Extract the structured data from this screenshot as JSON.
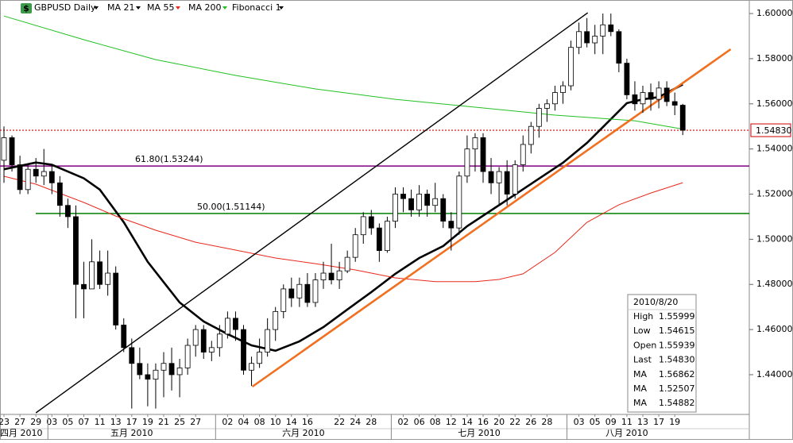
{
  "chart_data": {
    "type": "candlestick",
    "title": "GBPUSD Daily",
    "candle_color": "#000000",
    "categories": [
      "23",
      null,
      "27",
      null,
      "29",
      null,
      "03",
      null,
      "05",
      null,
      "07",
      null,
      "11",
      null,
      "13",
      null,
      "17",
      null,
      "19",
      null,
      "21",
      null,
      "25",
      null,
      "27",
      null,
      null,
      null,
      "02",
      null,
      "04",
      null,
      "08",
      null,
      "10",
      null,
      "14",
      null,
      "16",
      null,
      null,
      null,
      "22",
      null,
      "24",
      null,
      "28",
      null,
      null,
      null,
      "02",
      null,
      "06",
      null,
      "08",
      null,
      "12",
      null,
      "14",
      null,
      "16",
      null,
      "20",
      null,
      "22",
      null,
      "26",
      null,
      "28",
      null,
      null,
      null,
      "03",
      null,
      "05",
      null,
      "09",
      null,
      "11",
      null,
      "13",
      null,
      "17",
      null,
      "19",
      null
    ],
    "months": [
      {
        "label": "四月 2010",
        "start": 0
      },
      {
        "label": "五月 2010",
        "start": 6
      },
      {
        "label": "六月 2010",
        "start": 27
      },
      {
        "label": "七月 2010",
        "start": 49
      },
      {
        "label": "八月 2010",
        "start": 71
      }
    ],
    "ohlc": [
      [
        1.535,
        1.55,
        1.525,
        1.545
      ],
      [
        1.545,
        1.546,
        1.53,
        1.533
      ],
      [
        1.533,
        1.537,
        1.52,
        1.522
      ],
      [
        1.522,
        1.533,
        1.52,
        1.531
      ],
      [
        1.531,
        1.536,
        1.525,
        1.528
      ],
      [
        1.528,
        1.54,
        1.524,
        1.53
      ],
      [
        1.53,
        1.533,
        1.52,
        1.525
      ],
      [
        1.525,
        1.528,
        1.51,
        1.515
      ],
      [
        1.515,
        1.518,
        1.505,
        1.51
      ],
      [
        1.51,
        1.515,
        1.465,
        1.48
      ],
      [
        1.48,
        1.49,
        1.465,
        1.478
      ],
      [
        1.478,
        1.5,
        1.478,
        1.49
      ],
      [
        1.49,
        1.495,
        1.478,
        1.48
      ],
      [
        1.48,
        1.495,
        1.475,
        1.485
      ],
      [
        1.485,
        1.488,
        1.46,
        1.462
      ],
      [
        1.462,
        1.465,
        1.45,
        1.452
      ],
      [
        1.452,
        1.456,
        1.425,
        1.445
      ],
      [
        1.445,
        1.452,
        1.438,
        1.44
      ],
      [
        1.44,
        1.445,
        1.426,
        1.438
      ],
      [
        1.438,
        1.445,
        1.425,
        1.442
      ],
      [
        1.442,
        1.45,
        1.43,
        1.445
      ],
      [
        1.445,
        1.452,
        1.433,
        1.44
      ],
      [
        1.44,
        1.447,
        1.43,
        1.443
      ],
      [
        1.443,
        1.456,
        1.44,
        1.453
      ],
      [
        1.453,
        1.462,
        1.448,
        1.46
      ],
      [
        1.46,
        1.462,
        1.447,
        1.45
      ],
      [
        1.45,
        1.455,
        1.446,
        1.452
      ],
      [
        1.452,
        1.462,
        1.448,
        1.458
      ],
      [
        1.458,
        1.468,
        1.456,
        1.465
      ],
      [
        1.465,
        1.468,
        1.455,
        1.46
      ],
      [
        1.46,
        1.462,
        1.44,
        1.442
      ],
      [
        1.442,
        1.448,
        1.435,
        1.445
      ],
      [
        1.445,
        1.456,
        1.443,
        1.45
      ],
      [
        1.45,
        1.465,
        1.448,
        1.46
      ],
      [
        1.46,
        1.47,
        1.455,
        1.468
      ],
      [
        1.468,
        1.48,
        1.465,
        1.478
      ],
      [
        1.478,
        1.483,
        1.47,
        1.474
      ],
      [
        1.474,
        1.483,
        1.47,
        1.48
      ],
      [
        1.48,
        1.485,
        1.47,
        1.472
      ],
      [
        1.472,
        1.485,
        1.47,
        1.482
      ],
      [
        1.482,
        1.49,
        1.478,
        1.485
      ],
      [
        1.485,
        1.498,
        1.48,
        1.482
      ],
      [
        1.482,
        1.49,
        1.478,
        1.486
      ],
      [
        1.486,
        1.495,
        1.485,
        1.492
      ],
      [
        1.492,
        1.505,
        1.49,
        1.502
      ],
      [
        1.502,
        1.512,
        1.498,
        1.51
      ],
      [
        1.51,
        1.513,
        1.502,
        1.505
      ],
      [
        1.505,
        1.507,
        1.49,
        1.495
      ],
      [
        1.495,
        1.51,
        1.494,
        1.508
      ],
      [
        1.508,
        1.523,
        1.505,
        1.52
      ],
      [
        1.52,
        1.523,
        1.512,
        1.518
      ],
      [
        1.518,
        1.522,
        1.51,
        1.513
      ],
      [
        1.513,
        1.524,
        1.51,
        1.52
      ],
      [
        1.52,
        1.522,
        1.51,
        1.515
      ],
      [
        1.515,
        1.525,
        1.512,
        1.518
      ],
      [
        1.518,
        1.52,
        1.505,
        1.508
      ],
      [
        1.508,
        1.512,
        1.495,
        1.505
      ],
      [
        1.505,
        1.53,
        1.502,
        1.528
      ],
      [
        1.528,
        1.546,
        1.525,
        1.54
      ],
      [
        1.54,
        1.547,
        1.53,
        1.545
      ],
      [
        1.545,
        1.547,
        1.525,
        1.53
      ],
      [
        1.53,
        1.536,
        1.52,
        1.525
      ],
      [
        1.525,
        1.532,
        1.515,
        1.53
      ],
      [
        1.53,
        1.535,
        1.515,
        1.52
      ],
      [
        1.52,
        1.535,
        1.518,
        1.533
      ],
      [
        1.533,
        1.546,
        1.53,
        1.542
      ],
      [
        1.542,
        1.552,
        1.538,
        1.55
      ],
      [
        1.55,
        1.56,
        1.545,
        1.558
      ],
      [
        1.558,
        1.562,
        1.552,
        1.56
      ],
      [
        1.56,
        1.568,
        1.557,
        1.565
      ],
      [
        1.565,
        1.57,
        1.56,
        1.568
      ],
      [
        1.568,
        1.588,
        1.566,
        1.585
      ],
      [
        1.585,
        1.596,
        1.582,
        1.592
      ],
      [
        1.592,
        1.598,
        1.585,
        1.587
      ],
      [
        1.587,
        1.595,
        1.582,
        1.59
      ],
      [
        1.59,
        1.6,
        1.582,
        1.595
      ],
      [
        1.595,
        1.6,
        1.59,
        1.592
      ],
      [
        1.592,
        1.593,
        1.574,
        1.578
      ],
      [
        1.578,
        1.58,
        1.562,
        1.564
      ],
      [
        1.564,
        1.57,
        1.557,
        1.56
      ],
      [
        1.56,
        1.568,
        1.556,
        1.565
      ],
      [
        1.565,
        1.569,
        1.557,
        1.562
      ],
      [
        1.562,
        1.57,
        1.558,
        1.567
      ],
      [
        1.567,
        1.57,
        1.559,
        1.561
      ],
      [
        1.561,
        1.565,
        1.555,
        1.5594
      ],
      [
        1.55939,
        1.55999,
        1.54615,
        1.5483
      ]
    ],
    "series": [
      {
        "name": "MA 21",
        "color": "#000000",
        "x": [
          0,
          4,
          6,
          10,
          12,
          15,
          18,
          20,
          22,
          25,
          28,
          31,
          34,
          37,
          40,
          43,
          46,
          49,
          52,
          55,
          58,
          61,
          64,
          67,
          70,
          73,
          76,
          78,
          80,
          82,
          85
        ],
        "values": [
          1.531,
          1.534,
          1.533,
          1.527,
          1.522,
          1.5075,
          1.49,
          1.481,
          1.472,
          1.4636,
          1.458,
          1.453,
          1.4506,
          1.4548,
          1.4611,
          1.4689,
          1.4766,
          1.4847,
          1.4917,
          1.497,
          1.5058,
          1.5128,
          1.5198,
          1.5269,
          1.5339,
          1.5427,
          1.5532,
          1.5603,
          1.562,
          1.563,
          1.56862
        ]
      },
      {
        "name": "MA 55",
        "color": "#e8281c",
        "x": [
          0,
          4,
          10,
          14,
          19,
          24,
          29,
          34,
          39,
          44,
          49,
          54,
          59,
          62,
          65,
          69,
          73,
          77,
          81,
          85
        ],
        "values": [
          1.5279,
          1.5244,
          1.5163,
          1.5103,
          1.504,
          1.4987,
          1.4952,
          1.4917,
          1.4892,
          1.4864,
          1.4829,
          1.4812,
          1.4812,
          1.4822,
          1.4847,
          1.4942,
          1.5075,
          1.5153,
          1.5205,
          1.52507
        ]
      },
      {
        "name": "MA 200",
        "color": "#22c022",
        "x": [
          0,
          10,
          19,
          29,
          39,
          49,
          59,
          69,
          79,
          85
        ],
        "values": [
          1.5989,
          1.5884,
          1.5796,
          1.5726,
          1.5666,
          1.562,
          1.5585,
          1.555,
          1.5525,
          1.54882
        ]
      }
    ],
    "trend_lines": [
      {
        "color": "#000000",
        "x": [
          4,
          73.1
        ],
        "values": [
          1.4231,
          1.60035
        ]
      },
      {
        "color": "#f07020",
        "x": [
          31.1,
          91
        ],
        "values": [
          1.4347,
          1.5842
        ]
      }
    ],
    "fibonacci": {
      "name": "Fibonacci 1",
      "levels": [
        {
          "label": "61.80(1.53244)",
          "value": 1.53244,
          "color": "#800080"
        },
        {
          "label": "50.00(1.51144)",
          "value": 1.51144,
          "color": "#008000"
        }
      ]
    },
    "last_price": {
      "value": 1.5483,
      "label": "1.54830",
      "color": "#cc0000"
    },
    "ylim": [
      1.4224,
      1.606
    ],
    "yticks": [
      {
        "value": 1.44,
        "label": "1.44000"
      },
      {
        "value": 1.46,
        "label": "1.46000"
      },
      {
        "value": 1.48,
        "label": "1.48000"
      },
      {
        "value": 1.5,
        "label": "1.50000"
      },
      {
        "value": 1.52,
        "label": "1.52000"
      },
      {
        "value": 1.54,
        "label": "1.54000"
      },
      {
        "value": 1.56,
        "label": "1.56000"
      },
      {
        "value": 1.58,
        "label": "1.58000"
      },
      {
        "value": 1.6,
        "label": "1.60000"
      }
    ],
    "info_panel": {
      "date": "2010/8/20",
      "rows": [
        {
          "label": "High",
          "value": "1.55999",
          "color": "#000000"
        },
        {
          "label": "Low",
          "value": "1.54615",
          "color": "#000000"
        },
        {
          "label": "Open",
          "value": "1.55939",
          "color": "#000000"
        },
        {
          "label": "Last",
          "value": "1.54830",
          "color": "#000000"
        },
        {
          "label": "MA",
          "value": "1.56862",
          "color": "#000000"
        },
        {
          "label": "MA",
          "value": "1.52507",
          "color": "#e8281c"
        },
        {
          "label": "MA",
          "value": "1.54882",
          "color": "#22c022"
        }
      ]
    }
  }
}
